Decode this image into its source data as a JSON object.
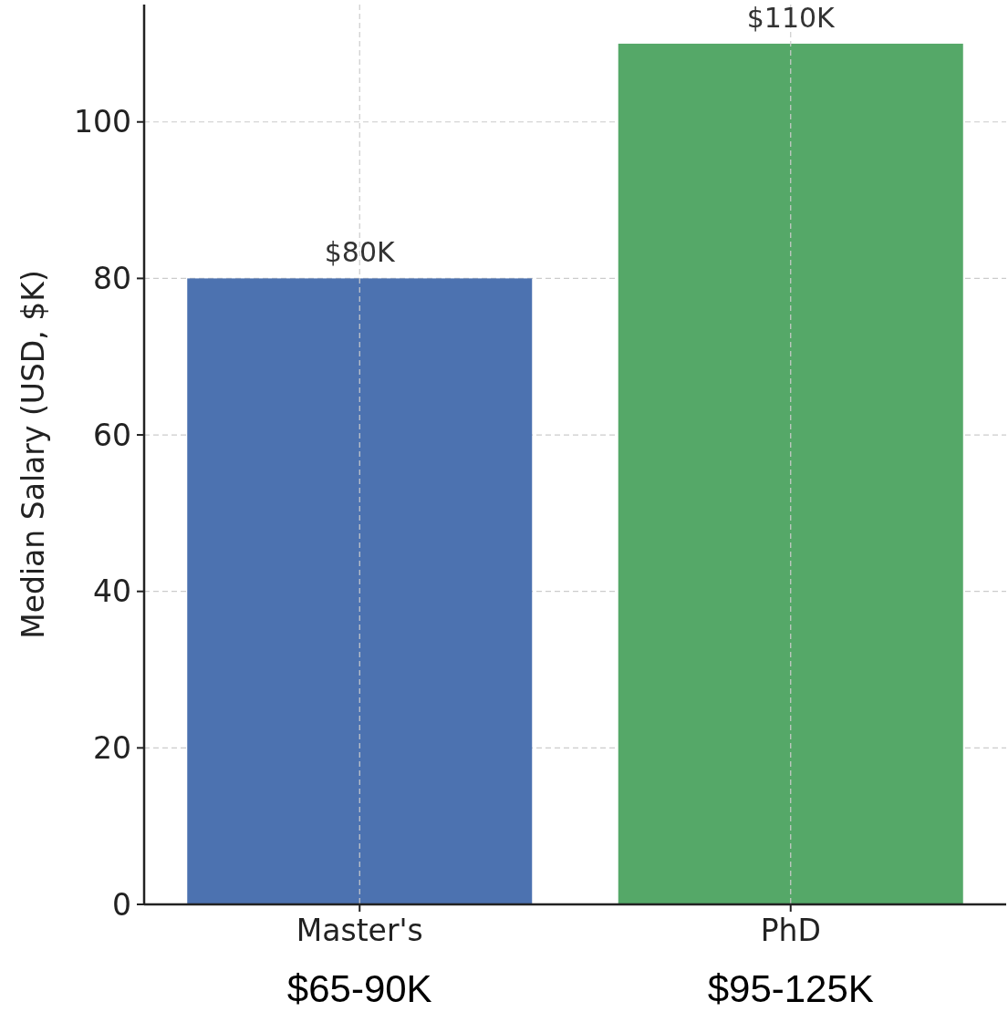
{
  "chart_data": {
    "type": "bar",
    "ylabel": "Median Salary (USD, $K)",
    "categories": [
      "Master's",
      "PhD"
    ],
    "values": [
      80,
      110
    ],
    "colors": [
      "#4c72b0",
      "#55a868"
    ],
    "value_labels": [
      "$80K",
      "$110K"
    ],
    "ylim": [
      0,
      115
    ],
    "yticks": [
      0,
      20,
      40,
      60,
      80,
      100
    ],
    "grid": true,
    "annotations": [
      "$65-90K",
      "$95-125K"
    ]
  }
}
